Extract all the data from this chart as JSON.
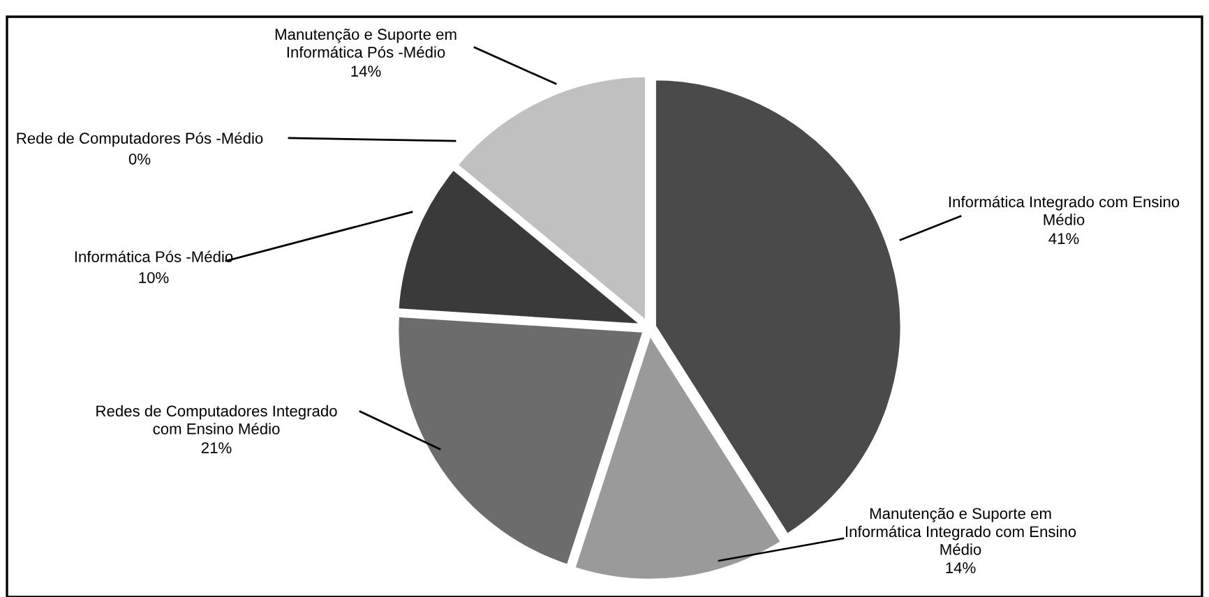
{
  "chart_data": {
    "type": "pie",
    "categories": [
      "Informática Integrado com Ensino\nMédio",
      "Manutenção e Suporte em\nInformática Integrado com Ensino\nMédio",
      "Redes de Computadores Integrado\ncom Ensino Médio",
      "Informática Pós -Médio",
      "Rede de Computadores Pós -Médio",
      "Manutenção e Suporte em\nInformática Pós -Médio"
    ],
    "values": [
      41,
      14,
      21,
      10,
      0,
      14
    ],
    "colors": [
      "#4a4a4a",
      "#9a9a9a",
      "#6c6c6c",
      "#3a3a3a",
      "#808080",
      "#c0c0c0"
    ],
    "value_labels": [
      "41%",
      "14%",
      "21%",
      "10%",
      "0%",
      "14%"
    ],
    "legend": false
  }
}
